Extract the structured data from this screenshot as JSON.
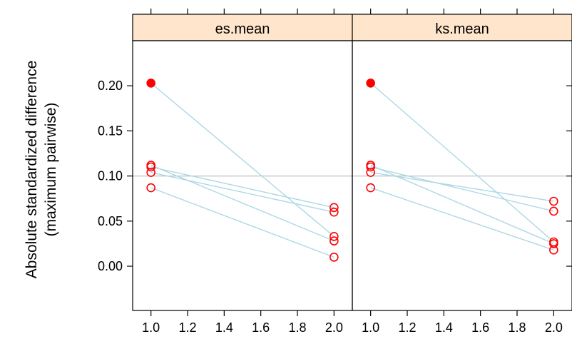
{
  "chart_data": {
    "type": "line",
    "ylabel": [
      "Absolute standardized difference",
      "(maximum pairwise)"
    ],
    "xlim": [
      0.9,
      2.1
    ],
    "ylim": [
      -0.08,
      0.26
    ],
    "x_ticks": [
      "1.0",
      "1.2",
      "1.4",
      "1.6",
      "1.8",
      "2.0"
    ],
    "y_ticks": [
      "0.00",
      "0.05",
      "0.10",
      "0.15",
      "0.20"
    ],
    "reference_line": 0.1,
    "colors": {
      "strip": "#ffe5cc",
      "line": "#add8e6",
      "point": "#ff0000",
      "ref": "#bebebe"
    },
    "panels": [
      {
        "name": "es.mean",
        "series": [
          {
            "x": [
              1,
              2
            ],
            "y": [
              0.203,
              0.033
            ],
            "filled_start": true
          },
          {
            "x": [
              1,
              2
            ],
            "y": [
              0.112,
              0.028
            ]
          },
          {
            "x": [
              1,
              2
            ],
            "y": [
              0.11,
              0.065
            ]
          },
          {
            "x": [
              1,
              2
            ],
            "y": [
              0.104,
              0.06
            ]
          },
          {
            "x": [
              1,
              2
            ],
            "y": [
              0.087,
              0.01
            ]
          }
        ]
      },
      {
        "name": "ks.mean",
        "series": [
          {
            "x": [
              1,
              2
            ],
            "y": [
              0.203,
              0.027
            ],
            "filled_start": true
          },
          {
            "x": [
              1,
              2
            ],
            "y": [
              0.112,
              0.025
            ]
          },
          {
            "x": [
              1,
              2
            ],
            "y": [
              0.11,
              0.061
            ]
          },
          {
            "x": [
              1,
              2
            ],
            "y": [
              0.104,
              0.072
            ]
          },
          {
            "x": [
              1,
              2
            ],
            "y": [
              0.087,
              0.018
            ]
          }
        ]
      }
    ]
  }
}
